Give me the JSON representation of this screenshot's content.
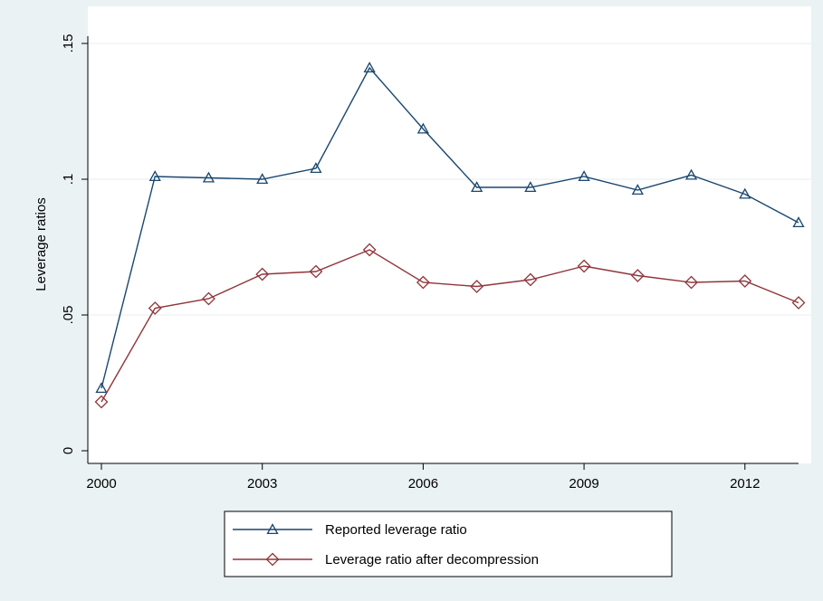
{
  "chart_data": {
    "type": "line",
    "ylabel": "Leverage ratios",
    "xlabel": "",
    "xlim": [
      2000,
      2013
    ],
    "ylim": [
      0,
      0.15
    ],
    "x_ticks": [
      2000,
      2003,
      2006,
      2009,
      2012
    ],
    "y_ticks": [
      {
        "value": 0,
        "label": "0"
      },
      {
        "value": 0.05,
        "label": ".05"
      },
      {
        "value": 0.1,
        "label": ".1"
      },
      {
        "value": 0.15,
        "label": ".15"
      }
    ],
    "x": [
      2000,
      2001,
      2002,
      2003,
      2004,
      2005,
      2006,
      2007,
      2008,
      2009,
      2010,
      2011,
      2012,
      2013
    ],
    "series": [
      {
        "name": "Reported leverage ratio",
        "color": "#1a476f",
        "marker": "triangle",
        "values": [
          0.023,
          0.101,
          0.1005,
          0.1,
          0.104,
          0.141,
          0.1185,
          0.097,
          0.097,
          0.101,
          0.096,
          0.1015,
          0.0945,
          0.084
        ]
      },
      {
        "name": "Leverage ratio after decompression",
        "color": "#90353b",
        "marker": "diamond",
        "values": [
          0.018,
          0.0525,
          0.056,
          0.065,
          0.066,
          0.074,
          0.062,
          0.0605,
          0.063,
          0.068,
          0.0645,
          0.062,
          0.0625,
          0.0545
        ]
      }
    ],
    "grid": true,
    "legend": "bottom"
  }
}
